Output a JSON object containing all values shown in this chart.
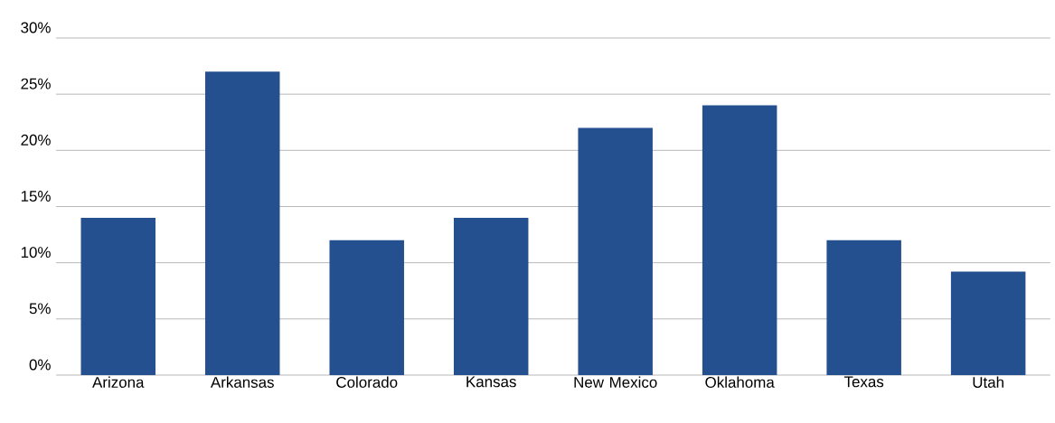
{
  "chart_data": {
    "type": "bar",
    "categories": [
      "Arizona",
      "Arkansas",
      "Colorado",
      "Kansas",
      "New Mexico",
      "Oklahoma",
      "Texas",
      "Utah"
    ],
    "values": [
      14,
      27,
      12,
      14,
      22,
      24,
      12,
      9.2
    ],
    "color": "#24508f",
    "ylim": [
      0,
      30
    ],
    "yticks": [
      {
        "value": 0,
        "label": "0%"
      },
      {
        "value": 5,
        "label": "5%"
      },
      {
        "value": 10,
        "label": "10%"
      },
      {
        "value": 15,
        "label": "15%"
      },
      {
        "value": 20,
        "label": "20%"
      },
      {
        "value": 25,
        "label": "25%"
      },
      {
        "value": 30,
        "label": "30%"
      }
    ],
    "grid": "y"
  }
}
